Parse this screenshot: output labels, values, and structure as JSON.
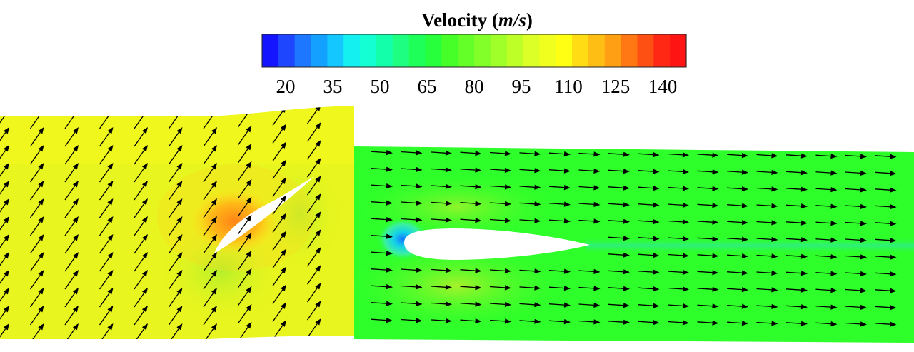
{
  "legend": {
    "title": "Velocity",
    "unit_open": "(",
    "unit": "m/s",
    "unit_close": ")",
    "ticks": [
      "20",
      "35",
      "50",
      "65",
      "80",
      "95",
      "110",
      "125",
      "140"
    ],
    "colors": [
      "#1414ff",
      "#1e46ff",
      "#1e78ff",
      "#14a0ff",
      "#14c8ff",
      "#14f0f0",
      "#14ffd2",
      "#14ffaa",
      "#1eff82",
      "#1eff5a",
      "#28ff3c",
      "#46ff28",
      "#64ff28",
      "#82ff28",
      "#a0ff28",
      "#beff28",
      "#dcff28",
      "#f0ff1e",
      "#ffff14",
      "#ffdc14",
      "#ffbe14",
      "#ffa014",
      "#ff7814",
      "#ff5014",
      "#ff2814",
      "#ff1414"
    ]
  },
  "panels": [
    {
      "name": "left-cascade",
      "flow": "inclined",
      "arrow_color": "#000000",
      "airfoil": true
    },
    {
      "name": "right-cascade",
      "flow": "horizontal",
      "arrow_color": "#000000",
      "airfoil": true
    }
  ]
}
